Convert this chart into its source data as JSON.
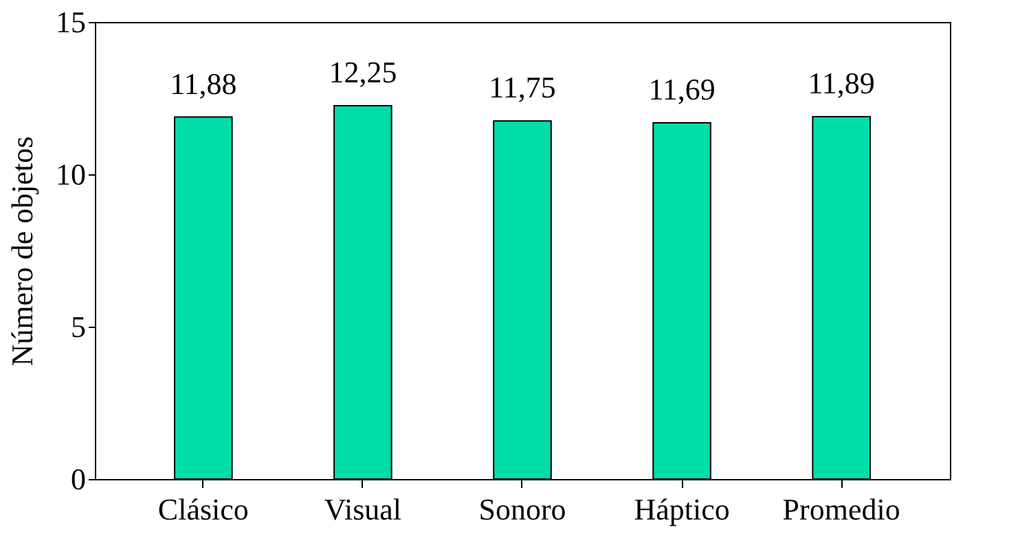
{
  "chart_data": {
    "type": "bar",
    "ylabel": "Número de objetos",
    "categories": [
      "Clásico",
      "Visual",
      "Sonoro",
      "Háptico",
      "Promedio"
    ],
    "values": [
      11.88,
      12.25,
      11.75,
      11.69,
      11.89
    ],
    "value_labels": [
      "11,88",
      "12,25",
      "11,75",
      "11,69",
      "11,89"
    ],
    "color": "#00dea8",
    "ylim": [
      0,
      15
    ],
    "yticks": [
      0,
      5,
      10,
      15
    ],
    "grid": false
  }
}
